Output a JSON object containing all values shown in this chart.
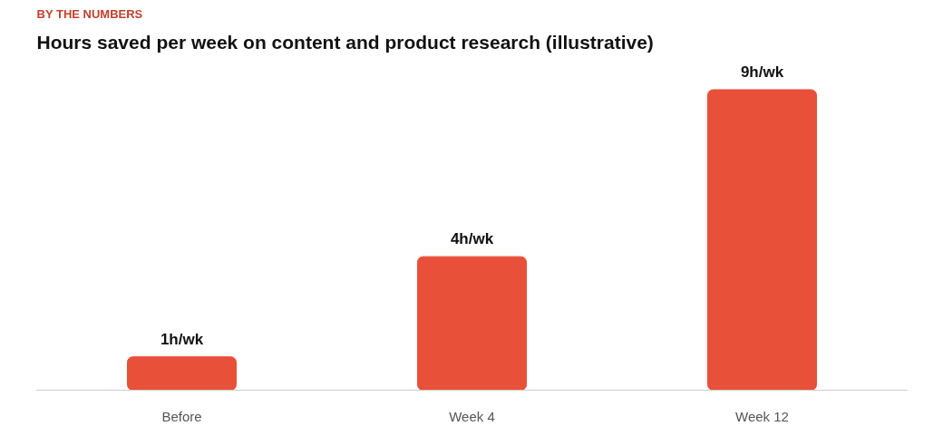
{
  "chart_data": {
    "type": "bar",
    "subtitle": "BY THE NUMBERS",
    "title": "Hours saved per week on content and product research (illustrative)",
    "categories": [
      "Before",
      "Week 4",
      "Week 12"
    ],
    "values": [
      1,
      4,
      9
    ],
    "value_labels": [
      "1h/wk",
      "4h/wk",
      "9h/wk"
    ],
    "color": "#e8503a",
    "grid": false
  }
}
